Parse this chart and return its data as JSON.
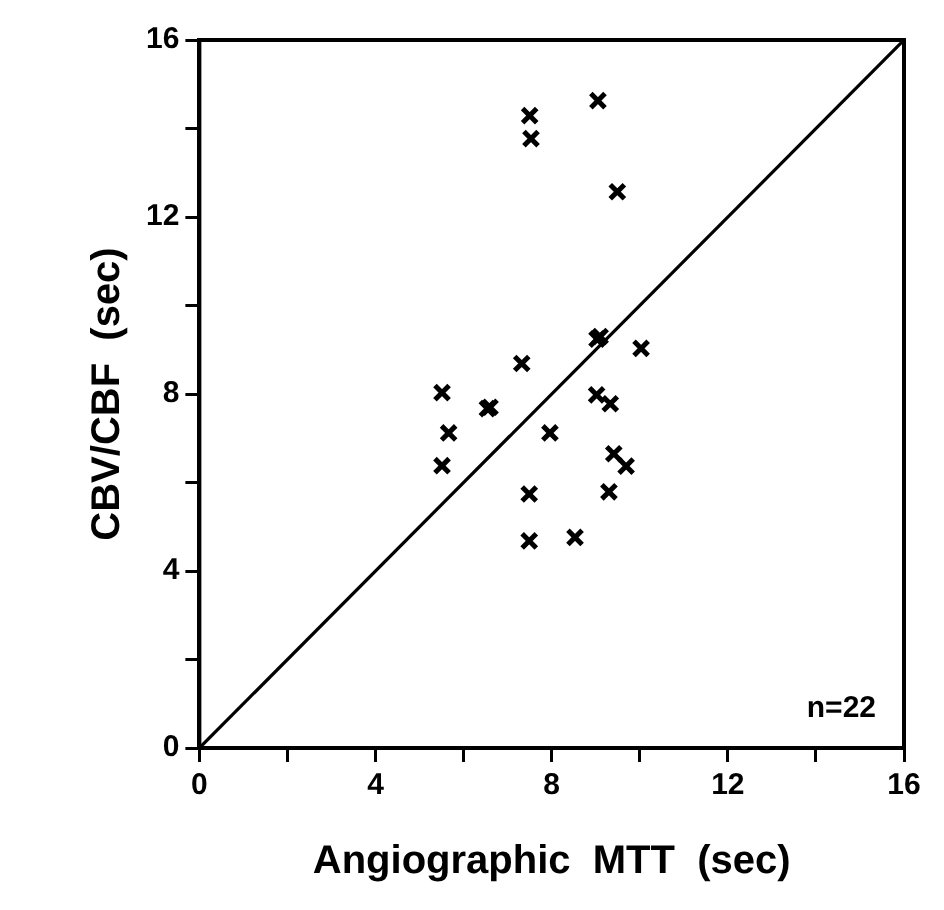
{
  "chart_data": {
    "type": "scatter",
    "xlabel": "Angiographic  MTT  (sec)",
    "ylabel": "CBV/CBF  (sec)",
    "annotations": [
      "n=22"
    ],
    "xlim": [
      0,
      16
    ],
    "ylim": [
      0,
      16
    ],
    "xticks": [
      0,
      {
        "value": 2,
        "label": null
      },
      4,
      {
        "value": 6,
        "label": null
      },
      8,
      {
        "value": 10,
        "label": null
      },
      12,
      {
        "value": 14,
        "label": null
      },
      16
    ],
    "yticks": [
      0,
      {
        "value": 2,
        "label": null
      },
      4,
      {
        "value": 6,
        "label": null
      },
      8,
      {
        "value": 10,
        "label": null
      },
      12,
      {
        "value": 14,
        "label": null
      },
      16
    ],
    "grid": false,
    "legend": false,
    "marker": "cross",
    "series": [
      {
        "type": "scatter",
        "color": "#000000",
        "x": [
          7.5,
          7.53,
          9.05,
          9.49,
          9.03,
          9.1,
          10.03,
          7.32,
          5.51,
          6.54,
          6.6,
          9.02,
          9.33,
          5.66,
          7.96,
          5.51,
          9.41,
          9.69,
          7.49,
          9.3,
          7.49,
          8.53
        ],
        "values": [
          14.29,
          13.77,
          14.63,
          12.57,
          9.24,
          9.3,
          9.03,
          8.69,
          8.03,
          7.67,
          7.7,
          7.98,
          7.78,
          7.12,
          7.12,
          6.38,
          6.65,
          6.37,
          5.74,
          5.79,
          4.68,
          4.76
        ]
      },
      {
        "type": "line",
        "color": "#000000",
        "x": [
          0,
          16
        ],
        "values": [
          0,
          16
        ],
        "marker": "none",
        "line_style": "solid"
      }
    ]
  }
}
